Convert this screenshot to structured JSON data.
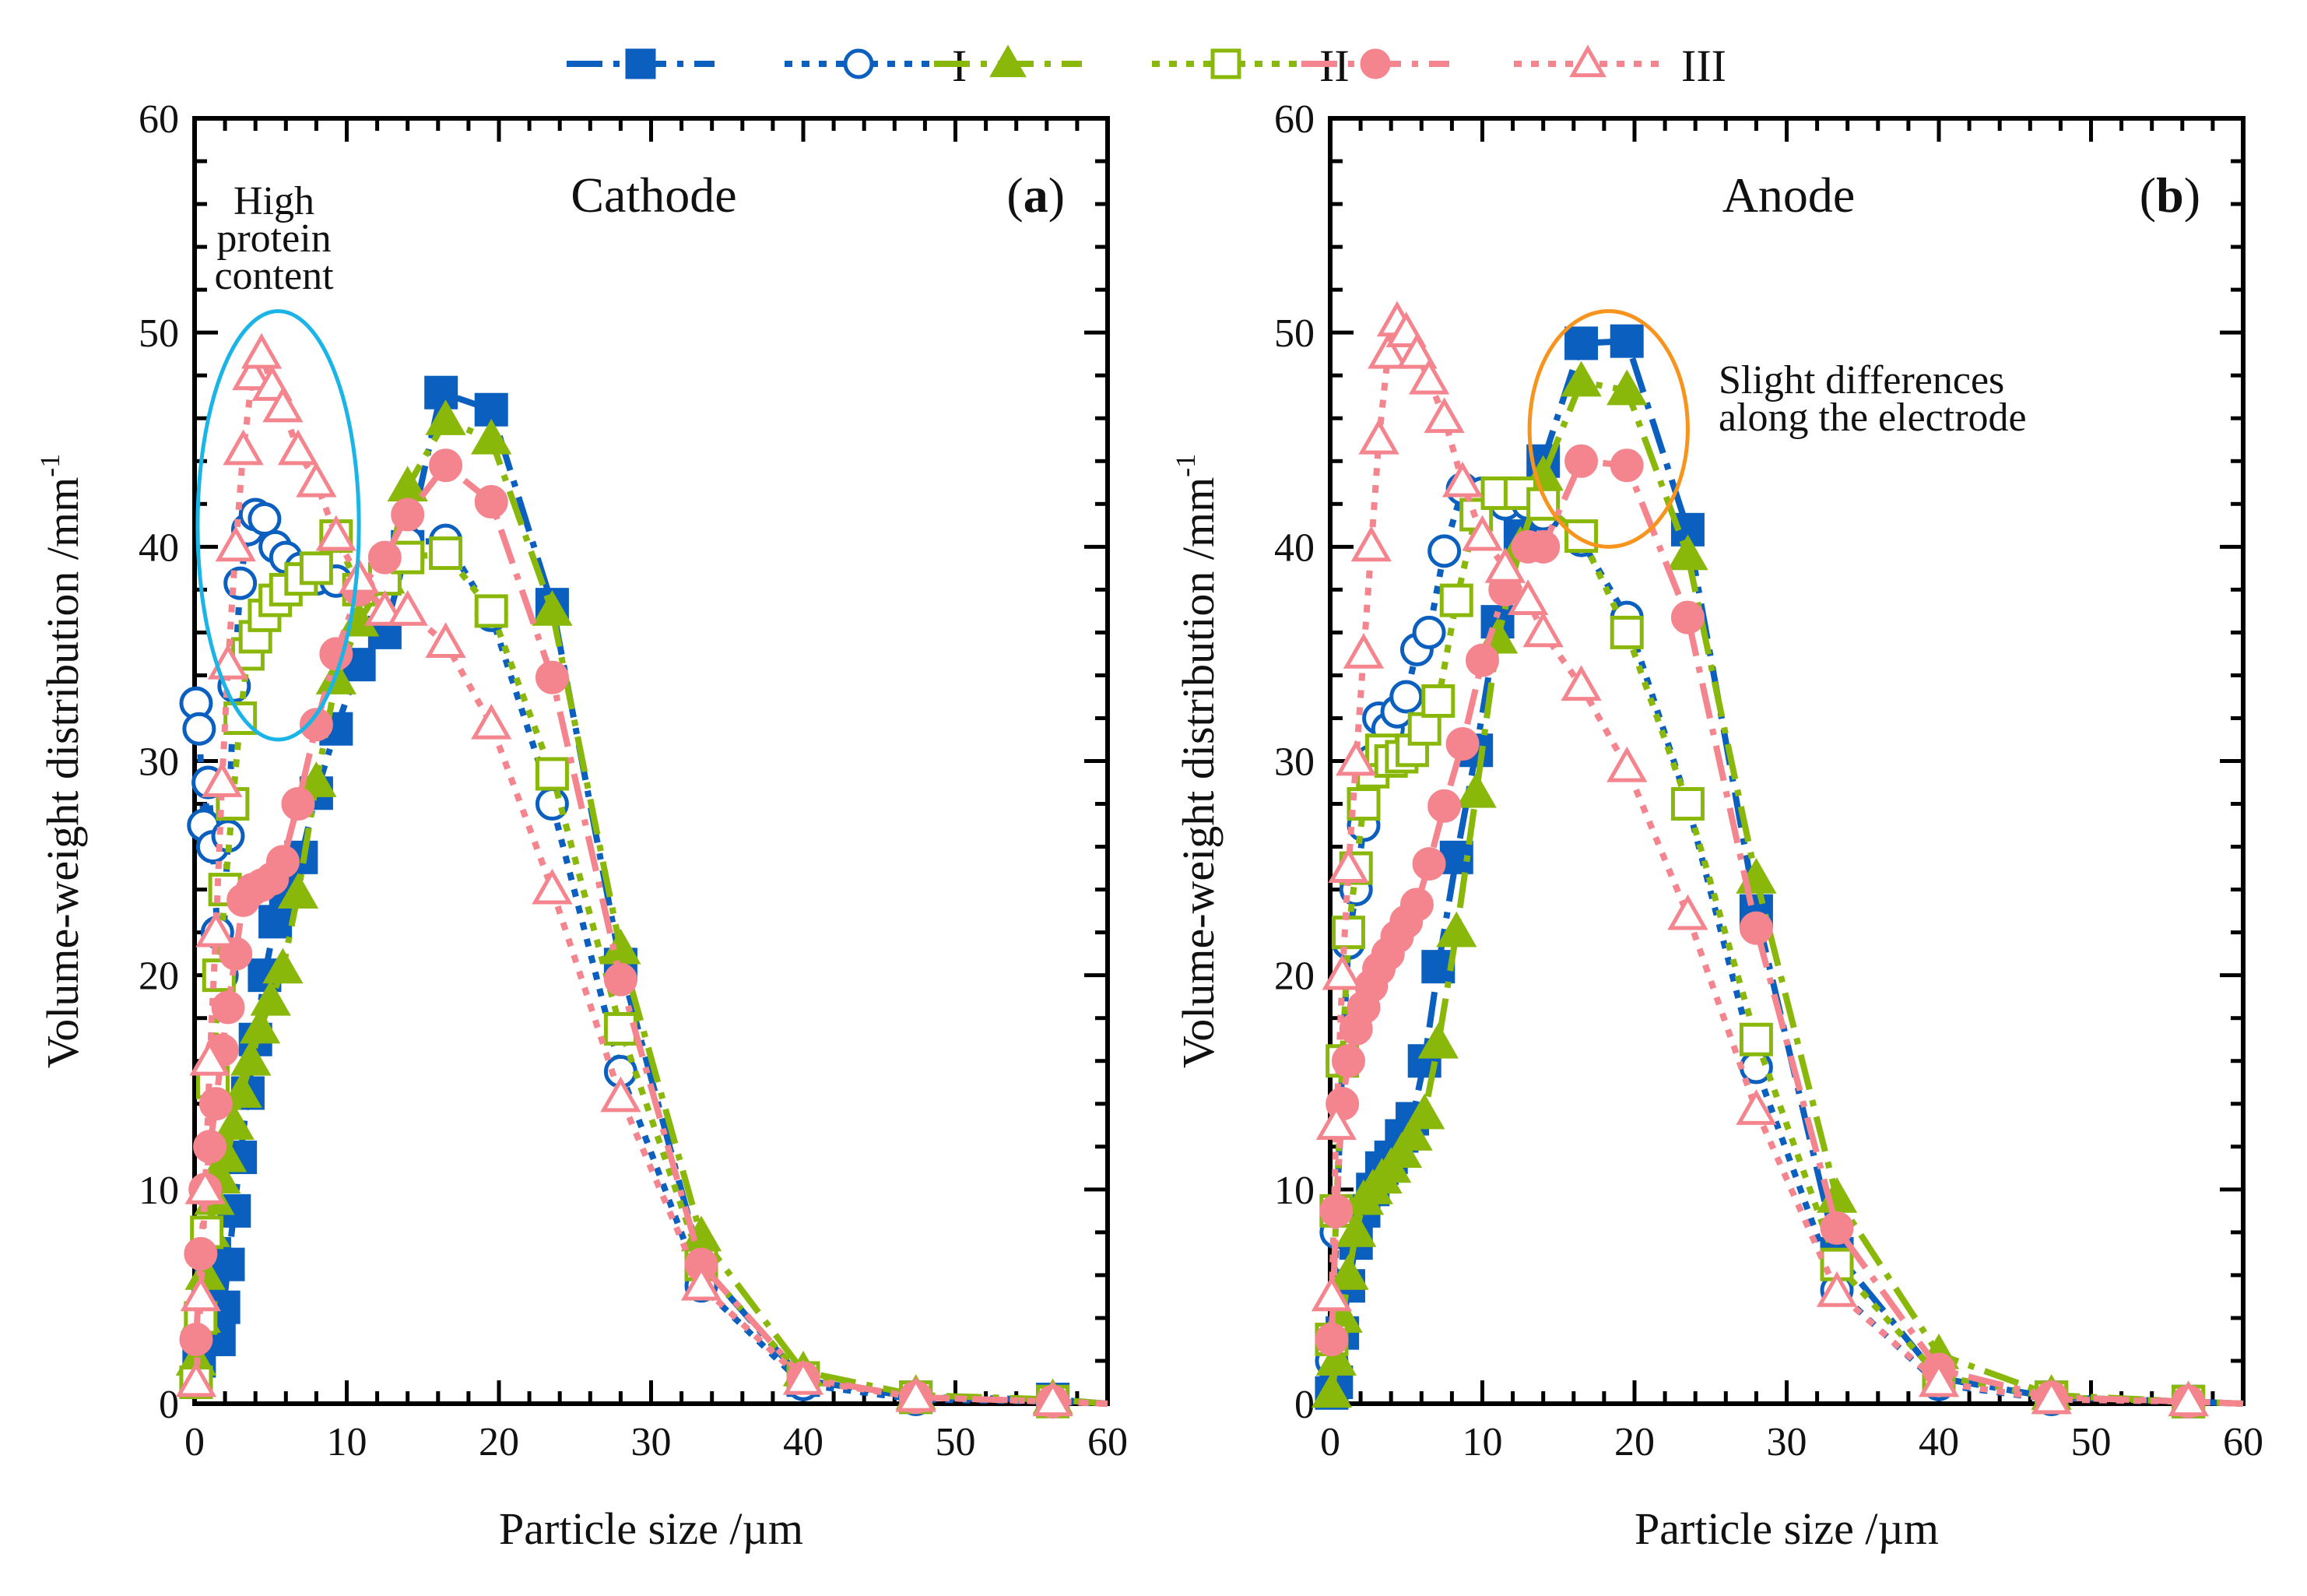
{
  "legend": {
    "entries": [
      {
        "label": "",
        "series": "I-cathode-solid"
      },
      {
        "label": "I",
        "series": "I-open"
      },
      {
        "label": "",
        "series": "II-solid"
      },
      {
        "label": "II",
        "series": "II-open"
      },
      {
        "label": "",
        "series": "III-solid"
      },
      {
        "label": "III",
        "series": "III-open"
      }
    ]
  },
  "colors": {
    "blue": "#0a5fbf",
    "green": "#8ab80a",
    "pink": "#f4858e",
    "cyan": "#1ab4e6",
    "orange": "#f7941d"
  },
  "chart_data": [
    {
      "type": "line",
      "panel": "a",
      "title": "Cathode",
      "panel_label_open": "(",
      "panel_label_letter": "a",
      "panel_label_close": ")",
      "xlabel": "Particle size /µm",
      "ylabel": "Volume-weight distribution /mm",
      "ylabel_sup": "-1",
      "xlim": [
        0,
        60
      ],
      "ylim": [
        0,
        60
      ],
      "xticks": [
        "0",
        "10",
        "20",
        "30",
        "40",
        "50",
        "60"
      ],
      "yticks": [
        "0",
        "10",
        "20",
        "30",
        "40",
        "50",
        "60"
      ],
      "annotation": {
        "lines": [
          "High",
          "protein",
          "content"
        ],
        "color": "cyan",
        "ellipse_data": {
          "cx": 5.5,
          "cy": 41,
          "rx": 5.3,
          "ry": 10
        }
      },
      "series": [
        {
          "name": "I solid",
          "color": "blue",
          "marker": "square",
          "filled": true,
          "dash": "long",
          "x": [
            0.1,
            0.3,
            0.5,
            0.7,
            0.9,
            1.1,
            1.3,
            1.6,
            1.9,
            2.2,
            2.6,
            3.0,
            3.5,
            4.0,
            4.6,
            5.3,
            6.0,
            7.0,
            8.0,
            9.3,
            10.8,
            12.5,
            14.0,
            16.2,
            19.5,
            23.5,
            28.0,
            33.3,
            40.0,
            47.4,
            56.4,
            60
          ],
          "y": [
            1,
            2,
            3,
            4,
            5,
            6,
            7,
            3,
            4.5,
            6.5,
            9,
            11.5,
            14.5,
            17,
            20,
            22.5,
            24,
            25.5,
            28.5,
            31.5,
            34.5,
            36,
            40,
            47.2,
            46.4,
            37.3,
            20.5,
            6.5,
            1.1,
            0.3,
            0.2,
            0
          ]
        },
        {
          "name": "I open",
          "color": "blue",
          "marker": "circle",
          "filled": false,
          "dash": "short",
          "x": [
            0.1,
            0.3,
            0.6,
            0.9,
            1.2,
            1.5,
            1.8,
            2.2,
            2.6,
            3.0,
            3.5,
            4.0,
            4.6,
            5.3,
            6.0,
            7.0,
            8.0,
            9.3,
            10.8,
            12.5,
            14.0,
            16.5,
            19.5,
            23.5,
            28.0,
            33.3,
            40.0,
            47.4,
            56.4,
            60
          ],
          "y": [
            32.7,
            31.5,
            27,
            29,
            26,
            22,
            20,
            26.5,
            33.5,
            38.3,
            40.8,
            41.5,
            41.3,
            40,
            39.5,
            39,
            38.5,
            38.4,
            38,
            39,
            40.2,
            40.3,
            36.8,
            28,
            15.5,
            5.5,
            0.9,
            0.2,
            0.1,
            0
          ]
        },
        {
          "name": "II solid",
          "color": "green",
          "marker": "triangle",
          "filled": true,
          "dash": "long",
          "x": [
            0.1,
            0.4,
            0.7,
            1.0,
            1.3,
            1.7,
            2.1,
            2.6,
            3.1,
            3.7,
            4.3,
            5.0,
            5.8,
            6.8,
            8.0,
            9.3,
            10.8,
            12.5,
            14.0,
            16.5,
            19.5,
            23.5,
            28.0,
            33.3,
            40.0,
            47.4,
            56.4,
            60
          ],
          "y": [
            2,
            4,
            6,
            8,
            9.5,
            10.5,
            11.5,
            13,
            14.5,
            16,
            17.5,
            18.8,
            20.3,
            23.8,
            29,
            33.8,
            36.5,
            38.5,
            42.8,
            45.9,
            45,
            37,
            21.2,
            7.8,
            1.5,
            0.4,
            0.2,
            0
          ]
        },
        {
          "name": "II open",
          "color": "green",
          "marker": "square",
          "filled": false,
          "dash": "short",
          "x": [
            0.1,
            0.4,
            0.8,
            1.2,
            1.6,
            2.0,
            2.5,
            3.0,
            3.5,
            4.0,
            4.6,
            5.3,
            6.0,
            7.0,
            8.0,
            9.3,
            10.8,
            12.5,
            14.0,
            16.5,
            19.5,
            23.5,
            28.0,
            33.3,
            40.0,
            47.4,
            56.4,
            60
          ],
          "y": [
            1,
            4,
            8,
            15,
            20,
            24,
            28,
            32,
            35,
            35.8,
            36.8,
            37.5,
            38,
            38.5,
            39,
            40.5,
            38,
            38.5,
            39.5,
            39.7,
            37,
            29.4,
            17.5,
            6.5,
            1.2,
            0.3,
            0.1,
            0
          ]
        },
        {
          "name": "III solid",
          "color": "pink",
          "marker": "circle",
          "filled": true,
          "dash": "long",
          "x": [
            0.1,
            0.4,
            0.7,
            1.0,
            1.4,
            1.8,
            2.2,
            2.7,
            3.2,
            3.8,
            4.4,
            5.1,
            5.8,
            6.8,
            8.0,
            9.3,
            10.8,
            12.5,
            14.0,
            16.5,
            19.5,
            23.5,
            28.0,
            33.3,
            40.0,
            47.4,
            56.4,
            60
          ],
          "y": [
            3,
            7,
            10,
            12,
            14,
            16.5,
            18.5,
            21,
            23.5,
            24,
            24.2,
            24.5,
            25.3,
            28,
            31.7,
            35,
            38,
            39.5,
            41.5,
            43.8,
            42.1,
            33.9,
            19.8,
            6.5,
            1.2,
            0.3,
            0.1,
            0
          ]
        },
        {
          "name": "III open",
          "color": "pink",
          "marker": "triangle",
          "filled": false,
          "dash": "short",
          "x": [
            0.1,
            0.4,
            0.7,
            1.0,
            1.4,
            1.8,
            2.2,
            2.7,
            3.2,
            3.8,
            4.4,
            5.1,
            5.8,
            6.8,
            8.0,
            9.3,
            10.8,
            12.5,
            14.0,
            16.5,
            19.5,
            23.5,
            28.0,
            33.3,
            40.0,
            47.4,
            56.4,
            60
          ],
          "y": [
            1,
            5,
            10,
            16,
            22,
            29,
            34.5,
            40,
            44.5,
            48,
            49,
            47.5,
            46.5,
            44.5,
            43,
            40.5,
            38.5,
            37,
            37,
            35.5,
            31.7,
            24,
            14.3,
            5.5,
            1.1,
            0.3,
            0.1,
            0
          ]
        }
      ]
    },
    {
      "type": "line",
      "panel": "b",
      "title": "Anode",
      "panel_label_open": "(",
      "panel_label_letter": "b",
      "panel_label_close": ")",
      "xlabel": "Particle size /µm",
      "ylabel": "Volume-weight distribution /mm",
      "ylabel_sup": "-1",
      "xlim": [
        0,
        60
      ],
      "ylim": [
        0,
        60
      ],
      "xticks": [
        "0",
        "10",
        "20",
        "30",
        "40",
        "50",
        "60"
      ],
      "yticks": [
        "0",
        "10",
        "20",
        "30",
        "40",
        "50",
        "60"
      ],
      "annotation": {
        "lines": [
          "Slight differences",
          "along the electrode"
        ],
        "color": "orange",
        "ellipse_data": {
          "cx": 18.3,
          "cy": 45.5,
          "rx": 5.2,
          "ry": 5.5
        }
      },
      "series": [
        {
          "name": "I solid",
          "color": "blue",
          "marker": "square",
          "filled": true,
          "dash": "long",
          "x": [
            0.1,
            0.4,
            0.8,
            1.2,
            1.7,
            2.2,
            2.8,
            3.4,
            4.0,
            4.7,
            5.4,
            6.2,
            7.1,
            8.3,
            9.6,
            11.0,
            12.5,
            14.0,
            16.5,
            19.5,
            23.5,
            28.0,
            33.3,
            40.0,
            47.4,
            56.4,
            60
          ],
          "y": [
            0.5,
            1,
            3.3,
            5.5,
            7.5,
            9,
            10,
            11,
            11.5,
            12.5,
            13.3,
            16,
            20.4,
            25.5,
            30.5,
            36.5,
            40.5,
            44,
            49.5,
            49.6,
            40.8,
            23,
            7,
            1.2,
            0.3,
            0.1,
            0
          ]
        },
        {
          "name": "I open",
          "color": "blue",
          "marker": "circle",
          "filled": false,
          "dash": "short",
          "x": [
            0.1,
            0.4,
            0.8,
            1.2,
            1.7,
            2.2,
            2.7,
            3.2,
            3.8,
            4.4,
            5.0,
            5.7,
            6.5,
            7.5,
            8.7,
            10.0,
            11.5,
            13.0,
            14.0,
            16.5,
            19.5,
            23.5,
            28.0,
            33.3,
            40.0,
            47.4,
            56.4,
            60
          ],
          "y": [
            2,
            8,
            16,
            21.5,
            24,
            27,
            30,
            32,
            31.5,
            32.3,
            33,
            35.2,
            36,
            39.8,
            42.7,
            42.5,
            42,
            42,
            41.5,
            40.3,
            36.7,
            28,
            15.7,
            5.3,
            0.9,
            0.2,
            0.1,
            0
          ]
        },
        {
          "name": "II solid",
          "color": "green",
          "marker": "triangle",
          "filled": true,
          "dash": "long",
          "x": [
            0.1,
            0.4,
            0.8,
            1.2,
            1.7,
            2.2,
            2.8,
            3.4,
            4.0,
            4.7,
            5.4,
            6.2,
            7.1,
            8.3,
            9.6,
            11.0,
            12.5,
            14.0,
            16.5,
            19.5,
            23.5,
            28.0,
            33.3,
            40.0,
            47.4,
            56.4,
            60
          ],
          "y": [
            0.5,
            2,
            4,
            6,
            8,
            9.5,
            10,
            10.5,
            11,
            11.7,
            12.5,
            13.5,
            16.8,
            22,
            28.5,
            35.7,
            40,
            43.3,
            47.7,
            47.3,
            39.6,
            24.5,
            9.6,
            2.3,
            0.4,
            0.1,
            0
          ]
        },
        {
          "name": "II open",
          "color": "green",
          "marker": "square",
          "filled": false,
          "dash": "short",
          "x": [
            0.1,
            0.4,
            0.8,
            1.2,
            1.7,
            2.2,
            2.8,
            3.4,
            4.0,
            4.7,
            5.4,
            6.2,
            7.1,
            8.3,
            9.6,
            11.0,
            12.5,
            14.0,
            16.5,
            19.5,
            23.5,
            28.0,
            33.3,
            40.0,
            47.4,
            56.4,
            60
          ],
          "y": [
            3,
            9,
            16,
            22,
            25,
            28,
            29.5,
            30.5,
            30,
            30.2,
            30.5,
            31.5,
            32.8,
            37.5,
            41.5,
            42.5,
            42.5,
            42,
            40.5,
            36,
            28,
            17,
            6.5,
            1.3,
            0.3,
            0.1,
            0
          ]
        },
        {
          "name": "III solid",
          "color": "pink",
          "marker": "circle",
          "filled": true,
          "dash": "long",
          "x": [
            0.1,
            0.4,
            0.8,
            1.2,
            1.7,
            2.2,
            2.7,
            3.2,
            3.8,
            4.4,
            5.0,
            5.7,
            6.5,
            7.5,
            8.7,
            10.0,
            11.5,
            13.0,
            14.0,
            16.5,
            19.5,
            23.5,
            28.0,
            33.3,
            40.0,
            47.4,
            56.4,
            60
          ],
          "y": [
            3,
            9,
            14,
            16,
            17.5,
            18.5,
            19.5,
            20.3,
            21,
            21.8,
            22.5,
            23.3,
            25.2,
            27.9,
            30.8,
            34.7,
            38,
            40,
            40,
            44,
            43.8,
            36.7,
            22.2,
            8.2,
            1.6,
            0.3,
            0.1,
            0
          ]
        },
        {
          "name": "III open",
          "color": "pink",
          "marker": "triangle",
          "filled": false,
          "dash": "short",
          "x": [
            0.1,
            0.4,
            0.8,
            1.2,
            1.7,
            2.2,
            2.7,
            3.2,
            3.8,
            4.4,
            5.0,
            5.7,
            6.5,
            7.5,
            8.7,
            10.0,
            11.5,
            13.0,
            14.0,
            16.5,
            19.5,
            23.5,
            28.0,
            33.3,
            40.0,
            47.4,
            56.4,
            60
          ],
          "y": [
            5,
            13,
            20,
            25,
            30,
            35,
            40,
            45,
            49,
            50.5,
            50,
            49,
            47.8,
            46,
            43,
            40.5,
            39,
            37.5,
            36,
            33.5,
            29.7,
            22.8,
            13.7,
            5.2,
            1,
            0.2,
            0.1,
            0
          ]
        }
      ]
    }
  ]
}
